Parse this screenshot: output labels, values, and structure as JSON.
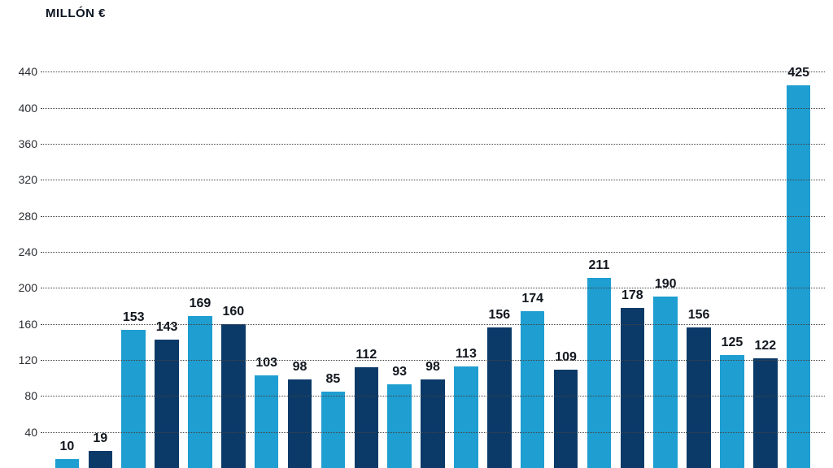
{
  "chart": {
    "type": "bar",
    "y_title": "MILLÓN €",
    "y_title_fontsize": 15,
    "y_title_color": "#0b1422",
    "label_fontsize": 16,
    "label_fontweight": 600,
    "label_color": "#12171f",
    "tick_fontsize": 14,
    "tick_color": "#2b2e33",
    "background_color": "#ffffff",
    "grid_color": "#444444",
    "grid_style": "dotted",
    "ylim": [
      0,
      480
    ],
    "yticks": [
      40,
      80,
      120,
      160,
      200,
      240,
      280,
      320,
      360,
      400,
      440
    ],
    "bar_colors": {
      "light": "#1e9ed1",
      "dark": "#0b3a68"
    },
    "bar_width_pct": 72,
    "data": [
      {
        "value": 10,
        "color": "light"
      },
      {
        "value": 19,
        "color": "dark"
      },
      {
        "value": 153,
        "color": "light"
      },
      {
        "value": 143,
        "color": "dark"
      },
      {
        "value": 169,
        "color": "light"
      },
      {
        "value": 160,
        "color": "dark"
      },
      {
        "value": 103,
        "color": "light"
      },
      {
        "value": 98,
        "color": "dark"
      },
      {
        "value": 85,
        "color": "light"
      },
      {
        "value": 112,
        "color": "dark"
      },
      {
        "value": 93,
        "color": "light"
      },
      {
        "value": 98,
        "color": "dark"
      },
      {
        "value": 113,
        "color": "light"
      },
      {
        "value": 156,
        "color": "dark"
      },
      {
        "value": 174,
        "color": "light"
      },
      {
        "value": 109,
        "color": "dark"
      },
      {
        "value": 211,
        "color": "light"
      },
      {
        "value": 178,
        "color": "dark"
      },
      {
        "value": 190,
        "color": "light"
      },
      {
        "value": 156,
        "color": "dark"
      },
      {
        "value": 125,
        "color": "light"
      },
      {
        "value": 122,
        "color": "dark"
      },
      {
        "value": 425,
        "color": "light"
      }
    ]
  }
}
